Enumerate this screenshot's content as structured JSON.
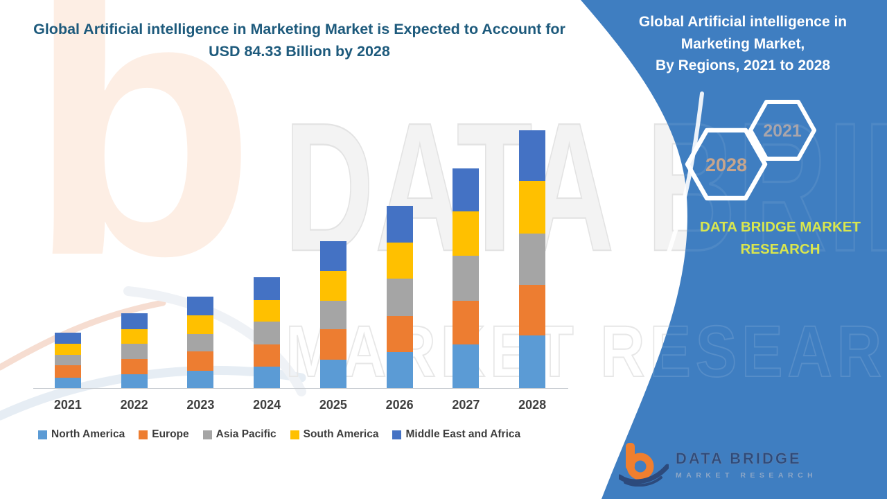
{
  "header": {
    "title_line1": "Global Artificial intelligence in Marketing Market is Expected to Account for",
    "title_line2": "USD 84.33 Billion by 2028"
  },
  "side_panel": {
    "panel_color": "#3f7ec1",
    "title_line1": "Global Artificial intelligence in",
    "title_line2": "Marketing Market,",
    "title_line3": "By Regions, 2021 to 2028",
    "hexagon_left_year": "2028",
    "hexagon_right_year": "2021",
    "brand_color": "#d9e64e",
    "brand_line1": "DATA BRIDGE MARKET",
    "brand_line2": "RESEARCH"
  },
  "watermark": {
    "line1": "DATA BRIDGE",
    "line2": "MARKET RESEARCH"
  },
  "logo": {
    "name": "DATA BRIDGE",
    "subtitle": "MARKET RESEARCH"
  },
  "chart_data": {
    "type": "bar",
    "stacked": true,
    "title": "Global Artificial intelligence in Marketing Market, By Regions, 2021 to 2028",
    "unit": "USD Billion",
    "categories": [
      "2021",
      "2022",
      "2023",
      "2024",
      "2025",
      "2026",
      "2027",
      "2028"
    ],
    "series": [
      {
        "name": "North America",
        "color": "#5B9BD5",
        "values": [
          3.4,
          4.5,
          5.7,
          7.0,
          9.3,
          11.9,
          14.2,
          17.2
        ]
      },
      {
        "name": "Europe",
        "color": "#ED7D31",
        "values": [
          4.1,
          5.1,
          6.4,
          7.4,
          10.0,
          11.7,
          14.5,
          16.5
        ]
      },
      {
        "name": "Asia Pacific",
        "color": "#A5A5A5",
        "values": [
          3.4,
          4.9,
          5.7,
          7.4,
          9.3,
          12.2,
          14.6,
          16.9
        ]
      },
      {
        "name": "South America",
        "color": "#FFC000",
        "values": [
          3.6,
          4.8,
          6.1,
          7.1,
          9.8,
          11.9,
          14.6,
          17.1
        ]
      },
      {
        "name": "Middle East and Africa",
        "color": "#4472C4",
        "values": [
          3.6,
          5.1,
          6.1,
          7.3,
          9.6,
          11.9,
          14.1,
          16.63
        ]
      }
    ],
    "totals_estimated": [
      18.1,
      24.4,
      30.0,
      36.2,
      48.0,
      59.6,
      72.0,
      84.33
    ],
    "ylim": [
      0,
      95
    ],
    "grid": false,
    "legend_position": "bottom",
    "x_axis_visible": true,
    "y_axis_visible": false
  }
}
